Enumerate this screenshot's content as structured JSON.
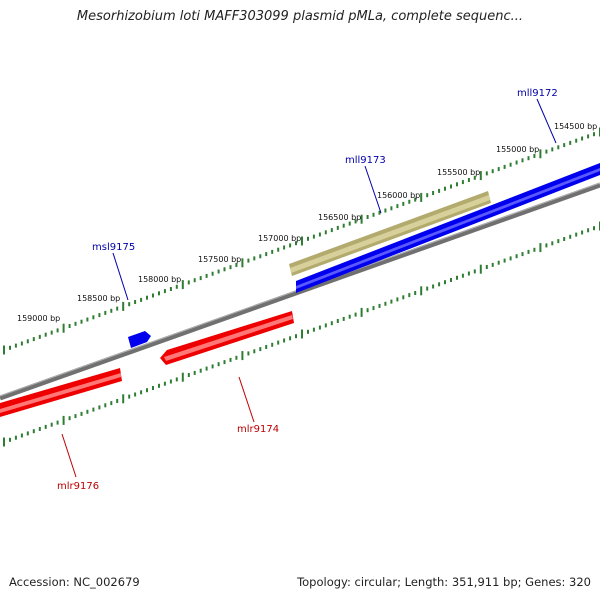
{
  "title": "Mesorhizobium loti MAFF303099 plasmid pMLa, complete sequenc...",
  "footer": {
    "accession": "Accession: NC_002679",
    "stats": "Topology: circular; Length: 351,911 bp; Genes: 320"
  },
  "colors": {
    "backbone": "#808080",
    "tick": "#2e7d32",
    "forward_gene": "#0000ee",
    "reverse_gene": "#ee0000",
    "highlight_gene": "#b8b078",
    "label_forward": "#0000aa",
    "label_reverse": "#bb0000"
  },
  "scale_ticks": [
    "154500 bp",
    "155000 bp",
    "155500 bp",
    "156000 bp",
    "156500 bp",
    "157000 bp",
    "157500 bp",
    "158000 bp",
    "158500 bp",
    "159000 bp"
  ],
  "genes": [
    {
      "name": "mll9172",
      "strand": "forward"
    },
    {
      "name": "mll9173",
      "strand": "forward"
    },
    {
      "name": "msl9175",
      "strand": "forward"
    },
    {
      "name": "mlr9174",
      "strand": "reverse"
    },
    {
      "name": "mlr9176",
      "strand": "reverse"
    }
  ]
}
